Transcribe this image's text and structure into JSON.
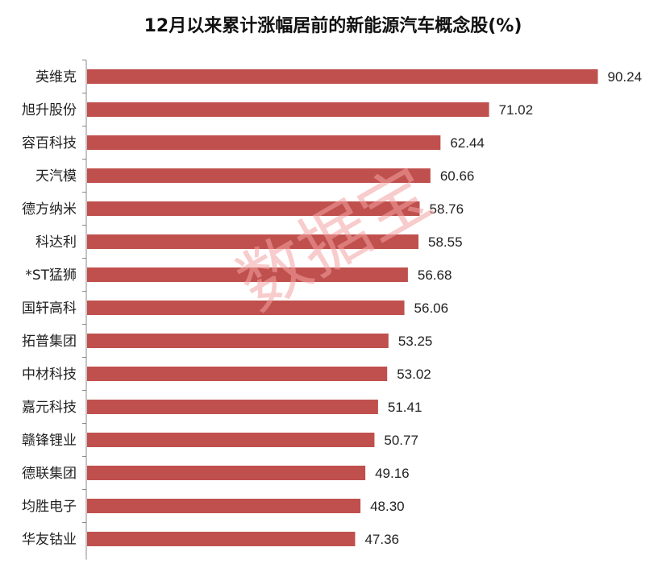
{
  "chart_data": {
    "type": "bar",
    "orientation": "horizontal",
    "title": "12月以来累计涨幅居前的新能源汽车概念股(%)",
    "categories": [
      "英维克",
      "旭升股份",
      "容百科技",
      "天汽模",
      "德方纳米",
      "科达利",
      "*ST猛狮",
      "国轩高科",
      "拓普集团",
      "中材科技",
      "嘉元科技",
      "赣锋锂业",
      "德联集团",
      "均胜电子",
      "华友钴业"
    ],
    "values": [
      90.24,
      71.02,
      62.44,
      60.66,
      58.76,
      58.55,
      56.68,
      56.06,
      53.25,
      53.02,
      51.41,
      50.77,
      49.16,
      48.3,
      47.36
    ],
    "value_labels": [
      "90.24",
      "71.02",
      "62.44",
      "60.66",
      "58.76",
      "58.55",
      "56.68",
      "56.06",
      "53.25",
      "53.02",
      "51.41",
      "50.77",
      "49.16",
      "48.30",
      "47.36"
    ],
    "bar_color": "#c0504d",
    "xlim": [
      0,
      100
    ],
    "grid": false,
    "legend": "none"
  },
  "watermark": "数据宝"
}
